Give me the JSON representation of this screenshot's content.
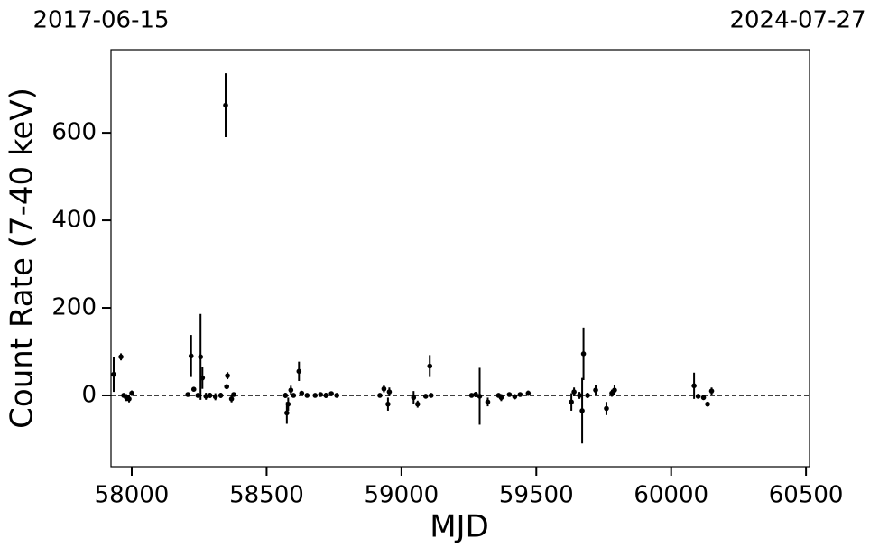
{
  "chart_data": {
    "type": "scatter",
    "date_start": "2017-06-15",
    "date_end": "2024-07-27",
    "xlabel": "MJD",
    "ylabel": "Count Rate (7-40 keV)",
    "xlim": [
      57923,
      60513
    ],
    "ylim": [
      -163,
      790
    ],
    "xticks": [
      58000,
      58500,
      59000,
      59500,
      60000,
      60500
    ],
    "yticks": [
      0,
      200,
      400,
      600
    ],
    "hline": 0,
    "series": [
      {
        "color": "#000000",
        "x": [
          57933,
          57960,
          57970,
          57980,
          57990,
          58000,
          58208,
          58220,
          58230,
          58245,
          58255,
          58262,
          58275,
          58290,
          58310,
          58330,
          58348,
          58352,
          58355,
          58370,
          58378,
          58570,
          58575,
          58580,
          58590,
          58600,
          58620,
          58630,
          58650,
          58680,
          58700,
          58720,
          58740,
          58760,
          58920,
          58935,
          58950,
          58955,
          59045,
          59060,
          59090,
          59105,
          59110,
          59260,
          59275,
          59290,
          59320,
          59360,
          59370,
          59400,
          59420,
          59440,
          59470,
          59630,
          59640,
          59660,
          59670,
          59675,
          59690,
          59720,
          59760,
          59780,
          59790,
          60085,
          60100,
          60120,
          60135,
          60150
        ],
        "values": [
          48,
          88,
          0,
          -5,
          -8,
          5,
          2,
          90,
          14,
          0,
          88,
          40,
          -2,
          0,
          -3,
          0,
          663,
          20,
          45,
          -8,
          2,
          0,
          -40,
          -20,
          12,
          0,
          55,
          5,
          0,
          0,
          2,
          0,
          4,
          0,
          0,
          15,
          -20,
          8,
          -5,
          -20,
          -2,
          67,
          0,
          0,
          2,
          -2,
          -15,
          0,
          -5,
          2,
          -3,
          2,
          5,
          -15,
          8,
          0,
          -35,
          95,
          0,
          12,
          -30,
          5,
          12,
          22,
          -2,
          -5,
          -20,
          10
        ],
        "errors": [
          40,
          8,
          5,
          8,
          8,
          6,
          5,
          48,
          4,
          5,
          98,
          25,
          8,
          6,
          8,
          6,
          73,
          5,
          8,
          8,
          5,
          6,
          25,
          15,
          10,
          5,
          22,
          5,
          4,
          4,
          5,
          6,
          5,
          4,
          5,
          8,
          15,
          10,
          15,
          8,
          5,
          25,
          5,
          5,
          6,
          65,
          10,
          5,
          8,
          5,
          6,
          5,
          6,
          20,
          10,
          8,
          75,
          60,
          6,
          12,
          15,
          8,
          12,
          30,
          5,
          5,
          5,
          8
        ]
      }
    ]
  }
}
